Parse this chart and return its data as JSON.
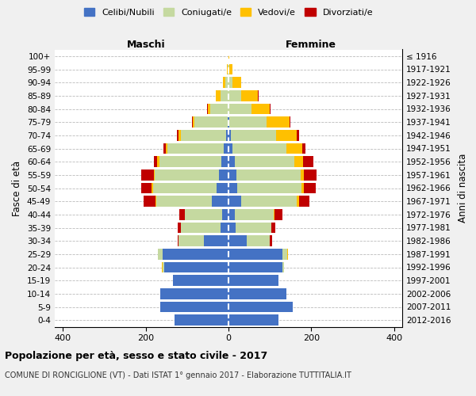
{
  "age_groups": [
    "0-4",
    "5-9",
    "10-14",
    "15-19",
    "20-24",
    "25-29",
    "30-34",
    "35-39",
    "40-44",
    "45-49",
    "50-54",
    "55-59",
    "60-64",
    "65-69",
    "70-74",
    "75-79",
    "80-84",
    "85-89",
    "90-94",
    "95-99",
    "100+"
  ],
  "birth_years": [
    "2012-2016",
    "2007-2011",
    "2002-2006",
    "1997-2001",
    "1992-1996",
    "1987-1991",
    "1982-1986",
    "1977-1981",
    "1972-1976",
    "1967-1971",
    "1962-1966",
    "1957-1961",
    "1952-1956",
    "1947-1951",
    "1942-1946",
    "1937-1941",
    "1932-1936",
    "1927-1931",
    "1922-1926",
    "1917-1921",
    "≤ 1916"
  ],
  "male": {
    "celibi": [
      130,
      165,
      165,
      135,
      155,
      160,
      60,
      20,
      15,
      40,
      28,
      23,
      17,
      12,
      5,
      2,
      0,
      0,
      0,
      0,
      0
    ],
    "coniugati": [
      0,
      0,
      0,
      0,
      5,
      10,
      60,
      95,
      90,
      135,
      155,
      155,
      150,
      135,
      110,
      80,
      45,
      20,
      8,
      2,
      0
    ],
    "vedovi": [
      0,
      0,
      0,
      0,
      2,
      0,
      0,
      0,
      1,
      2,
      3,
      3,
      5,
      5,
      5,
      5,
      5,
      10,
      5,
      2,
      0
    ],
    "divorziati": [
      0,
      0,
      0,
      0,
      0,
      0,
      3,
      8,
      12,
      28,
      25,
      30,
      8,
      5,
      5,
      2,
      2,
      0,
      0,
      0,
      0
    ]
  },
  "female": {
    "nubili": [
      120,
      155,
      140,
      120,
      130,
      130,
      45,
      18,
      15,
      30,
      22,
      20,
      15,
      10,
      5,
      2,
      0,
      0,
      0,
      0,
      0
    ],
    "coniugate": [
      0,
      0,
      0,
      0,
      5,
      12,
      55,
      85,
      95,
      135,
      155,
      155,
      145,
      130,
      110,
      90,
      55,
      30,
      10,
      2,
      0
    ],
    "vedove": [
      0,
      0,
      0,
      0,
      0,
      2,
      0,
      1,
      2,
      5,
      5,
      8,
      20,
      38,
      50,
      55,
      45,
      40,
      20,
      8,
      2
    ],
    "divorziate": [
      0,
      0,
      0,
      0,
      0,
      0,
      5,
      10,
      18,
      25,
      28,
      30,
      25,
      8,
      5,
      2,
      2,
      2,
      0,
      0,
      0
    ]
  },
  "colors": {
    "celibi": "#4472c4",
    "coniugati": "#c5d9a0",
    "vedovi": "#ffc000",
    "divorziati": "#c00000"
  },
  "xlim": 420,
  "title": "Popolazione per età, sesso e stato civile - 2017",
  "subtitle": "COMUNE DI RONCIGLIONE (VT) - Dati ISTAT 1° gennaio 2017 - Elaborazione TUTTITALIA.IT",
  "ylabel": "Fasce di età",
  "ylabel_right": "Anni di nascita",
  "xlabel_left": "Maschi",
  "xlabel_right": "Femmine",
  "bg_color": "#f0f0f0",
  "plot_bg": "#ffffff"
}
